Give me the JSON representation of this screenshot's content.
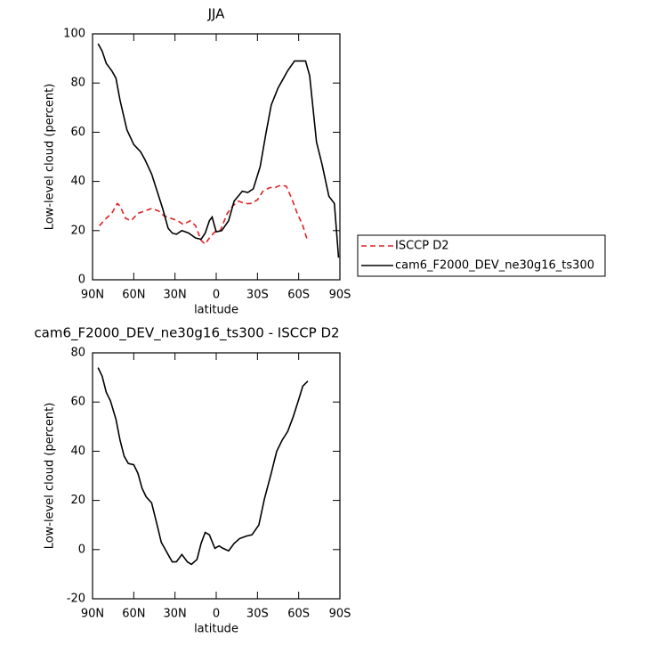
{
  "chart_data": [
    {
      "type": "line",
      "title": "JJA",
      "xlabel": "latitude",
      "ylabel": "Low-level cloud (percent)",
      "xlim": [
        90,
        -90
      ],
      "xticks": [
        {
          "value": 90,
          "label": "90N"
        },
        {
          "value": 60,
          "label": "60N"
        },
        {
          "value": 30,
          "label": "30N"
        },
        {
          "value": 0,
          "label": "0"
        },
        {
          "value": -30,
          "label": "30S"
        },
        {
          "value": -60,
          "label": "60S"
        },
        {
          "value": -90,
          "label": "90S"
        }
      ],
      "ylim": [
        0,
        100
      ],
      "yticks": [
        0,
        20,
        40,
        60,
        80,
        100
      ],
      "legend": "right",
      "series": [
        {
          "name": "ISCCP D2",
          "color": "#e02020",
          "dash": true,
          "x": [
            85,
            80,
            76,
            72,
            70,
            66,
            62,
            57,
            52,
            47,
            42,
            38,
            33,
            28,
            24,
            19,
            15,
            11,
            8,
            5,
            1,
            -3,
            -8,
            -12,
            -16,
            -21,
            -25,
            -30,
            -34,
            -39,
            -43,
            -47,
            -51,
            -55,
            -59,
            -63,
            -66.7
          ],
          "values": [
            22,
            25,
            27,
            31,
            30,
            25,
            24,
            27,
            28,
            29,
            28,
            26,
            25,
            24,
            22.5,
            24,
            22,
            16,
            14.5,
            17,
            19.5,
            20,
            27,
            30,
            32,
            31,
            31,
            32.5,
            36,
            37.5,
            37.5,
            38.5,
            38,
            33,
            27,
            22,
            15.5
          ]
        },
        {
          "name": "cam6_F2000_DEV_ne30g16_ts300",
          "color": "#000000",
          "dash": false,
          "x": [
            86,
            83,
            80,
            76,
            73,
            70,
            65,
            60,
            55,
            52,
            47,
            43,
            39,
            35,
            32,
            29,
            25,
            20,
            15,
            11,
            8,
            5,
            3,
            0,
            -4,
            -9,
            -13,
            -19,
            -23,
            -27,
            -32,
            -36,
            -40,
            -45,
            -49,
            -52,
            -57,
            -60,
            -65,
            -68,
            -73,
            -77,
            -82,
            -86,
            -89
          ],
          "values": [
            96,
            93,
            88,
            85,
            82,
            73,
            61,
            55,
            52,
            49,
            43,
            36,
            29,
            21,
            19,
            18.5,
            20,
            19,
            17,
            16.5,
            19,
            24,
            25.5,
            19.5,
            20,
            24,
            32,
            36,
            35.5,
            37,
            46,
            59,
            71,
            78,
            82,
            85,
            89,
            89,
            89,
            83,
            56,
            47,
            34,
            31,
            9
          ]
        }
      ]
    },
    {
      "type": "line",
      "title": "cam6_F2000_DEV_ne30g16_ts300 - ISCCP D2",
      "xlabel": "latitude",
      "ylabel": "Low-level cloud (percent)",
      "xlim": [
        90,
        -90
      ],
      "xticks": [
        {
          "value": 90,
          "label": "90N"
        },
        {
          "value": 60,
          "label": "60N"
        },
        {
          "value": 30,
          "label": "30N"
        },
        {
          "value": 0,
          "label": "0"
        },
        {
          "value": -30,
          "label": "30S"
        },
        {
          "value": -60,
          "label": "60S"
        },
        {
          "value": -90,
          "label": "90S"
        }
      ],
      "ylim": [
        -20,
        80
      ],
      "yticks": [
        -20,
        0,
        20,
        40,
        60,
        80
      ],
      "series": [
        {
          "color": "#000000",
          "dash": false,
          "x": [
            86,
            83,
            80,
            77,
            73,
            70,
            67,
            64,
            60,
            57,
            54,
            51,
            47,
            43,
            40,
            35,
            32,
            29,
            25,
            21,
            18,
            14,
            11,
            8,
            5,
            1,
            -2,
            -5,
            -9,
            -13,
            -17,
            -22,
            -26,
            -31,
            -35,
            -40,
            -44,
            -48,
            -52,
            -56,
            -60,
            -63,
            -66.7
          ],
          "values": [
            74,
            70.5,
            64,
            60.5,
            53,
            44.5,
            38,
            35,
            34.5,
            31,
            25,
            21.5,
            19,
            10,
            3,
            -2,
            -5,
            -5,
            -2,
            -5,
            -6,
            -4,
            2.5,
            7,
            6,
            0.5,
            1.5,
            0.5,
            -0.5,
            2.5,
            4.5,
            5.5,
            6,
            10,
            20.5,
            31,
            40,
            44.5,
            48,
            54,
            61,
            66.5,
            68.5
          ]
        }
      ]
    }
  ]
}
